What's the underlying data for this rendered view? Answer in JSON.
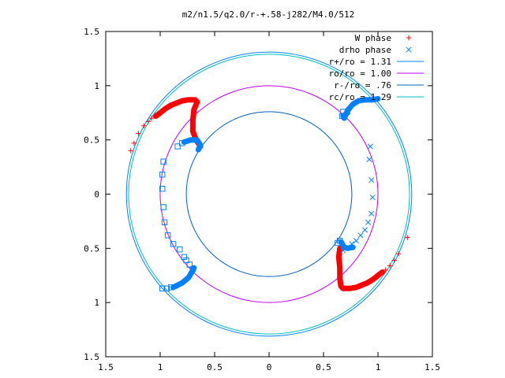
{
  "chart_data": {
    "type": "scatter",
    "title": "m2/n1.5/q2.0/r-+.58-j282/M4.0/512",
    "xlim": [
      -1.5,
      1.5
    ],
    "ylim": [
      -1.5,
      1.5
    ],
    "x_ticks": [
      -1.5,
      -1,
      -0.5,
      0,
      0.5,
      1,
      1.5
    ],
    "x_tick_labels": [
      "1.5",
      "1",
      "0.5",
      "0",
      "0.5",
      "1",
      "1.5"
    ],
    "y_ticks": [
      1.5,
      1,
      0.5,
      0,
      -0.5,
      -1,
      -1.5
    ],
    "y_tick_labels": [
      "1.5",
      "1",
      "0.5",
      "0",
      "0.5",
      "1",
      "1.5"
    ],
    "grid": false,
    "legend_position": "top-right",
    "series": [
      {
        "name": "W phase",
        "marker": "plus",
        "color": "#ff0000",
        "arms": [
          {
            "points": [
              [
                -1.27,
                0.4
              ],
              [
                -1.24,
                0.47
              ],
              [
                -1.2,
                0.56
              ],
              [
                -1.15,
                0.63
              ],
              [
                -1.11,
                0.67
              ],
              [
                -1.08,
                0.7
              ],
              [
                -1.05,
                0.72
              ],
              [
                -1.02,
                0.74
              ]
            ],
            "dense_path": [
              [
                -1.04,
                0.72
              ],
              [
                -1.0,
                0.75
              ],
              [
                -0.95,
                0.79
              ],
              [
                -0.9,
                0.82
              ],
              [
                -0.85,
                0.84
              ],
              [
                -0.8,
                0.86
              ],
              [
                -0.74,
                0.87
              ],
              [
                -0.68,
                0.87
              ],
              [
                -0.66,
                0.85
              ],
              [
                -0.69,
                0.78
              ],
              [
                -0.7,
                0.68
              ],
              [
                -0.7,
                0.58
              ],
              [
                -0.67,
                0.5
              ],
              [
                -0.63,
                0.44
              ]
            ]
          },
          {
            "points": [
              [
                1.27,
                -0.4
              ],
              [
                1.19,
                -0.55
              ],
              [
                1.15,
                -0.61
              ],
              [
                1.11,
                -0.66
              ],
              [
                1.07,
                -0.7
              ],
              [
                1.03,
                -0.73
              ]
            ],
            "dense_path": [
              [
                1.04,
                -0.72
              ],
              [
                1.0,
                -0.75
              ],
              [
                0.95,
                -0.79
              ],
              [
                0.9,
                -0.82
              ],
              [
                0.85,
                -0.84
              ],
              [
                0.8,
                -0.86
              ],
              [
                0.74,
                -0.87
              ],
              [
                0.68,
                -0.87
              ],
              [
                0.66,
                -0.85
              ],
              [
                0.65,
                -0.78
              ],
              [
                0.65,
                -0.68
              ],
              [
                0.64,
                -0.58
              ],
              [
                0.65,
                -0.5
              ]
            ]
          }
        ]
      },
      {
        "name": "drho phase",
        "marker": "cross",
        "color": "#0080ff",
        "arms": [
          {
            "points": [
              [
                0.93,
                0.44
              ],
              [
                0.92,
                0.32
              ],
              [
                0.94,
                0.13
              ],
              [
                0.95,
                -0.03
              ],
              [
                0.94,
                -0.18
              ],
              [
                0.91,
                -0.26
              ],
              [
                0.88,
                -0.33
              ],
              [
                0.84,
                -0.38
              ],
              [
                0.8,
                -0.43
              ],
              [
                0.76,
                -0.46
              ],
              [
                0.72,
                -0.49
              ],
              [
                0.68,
                -0.52
              ]
            ],
            "dense_path": [
              [
                0.69,
                0.7
              ],
              [
                0.72,
                0.77
              ],
              [
                0.77,
                0.83
              ],
              [
                0.82,
                0.86
              ],
              [
                0.88,
                0.87
              ],
              [
                0.95,
                0.87
              ],
              [
                1.0,
                0.88
              ]
            ]
          }
        ]
      },
      {
        "name": "",
        "marker": "square",
        "color": "#0080ff",
        "arms": [
          {
            "points": [
              [
                -0.97,
                0.3
              ],
              [
                -0.98,
                0.18
              ],
              [
                -0.98,
                0.05
              ],
              [
                -0.97,
                -0.12
              ],
              [
                -0.96,
                -0.26
              ],
              [
                -0.93,
                -0.38
              ],
              [
                -0.88,
                -0.46
              ],
              [
                -0.82,
                -0.51
              ],
              [
                -0.78,
                -0.58
              ],
              [
                -0.76,
                -0.61
              ],
              [
                -0.73,
                -0.65
              ],
              [
                -0.7,
                -0.69
              ],
              [
                -0.98,
                -0.87
              ],
              [
                -0.94,
                -0.87
              ],
              [
                -0.9,
                -0.86
              ]
            ],
            "dense_path": [
              [
                -0.88,
                -0.86
              ],
              [
                -0.8,
                -0.82
              ],
              [
                -0.74,
                -0.77
              ],
              [
                -0.71,
                -0.72
              ],
              [
                -0.69,
                -0.68
              ]
            ]
          },
          {
            "points": [
              [
                -0.84,
                0.44
              ],
              [
                -0.8,
                0.47
              ]
            ],
            "dense_path": [
              [
                -0.78,
                0.48
              ],
              [
                -0.72,
                0.5
              ],
              [
                -0.66,
                0.5
              ],
              [
                -0.63,
                0.45
              ],
              [
                -0.65,
                0.41
              ]
            ]
          },
          {
            "points": [
              [
                0.65,
                -0.43
              ],
              [
                0.63,
                -0.45
              ]
            ],
            "dense_path": [
              [
                0.66,
                -0.44
              ],
              [
                0.69,
                -0.49
              ],
              [
                0.72,
                -0.5
              ],
              [
                0.77,
                -0.49
              ]
            ]
          },
          {
            "points": [
              [
                0.68,
                0.76
              ],
              [
                0.67,
                0.72
              ]
            ],
            "dense_path": [
              [
                0.68,
                0.72
              ],
              [
                0.72,
                0.75
              ]
            ]
          }
        ]
      },
      {
        "name": "r+/ro = 1.31",
        "type": "circle",
        "radius": 1.31,
        "color": "#0080ff"
      },
      {
        "name": "ro/ro = 1.00",
        "type": "circle",
        "radius": 1.0,
        "color": "#c000ff"
      },
      {
        "name": "r-/ro = .76",
        "type": "circle",
        "radius": 0.76,
        "color": "#0060c0"
      },
      {
        "name": "rc/ro = 1.29",
        "type": "circle",
        "radius": 1.29,
        "color": "#00c0c0"
      }
    ]
  }
}
